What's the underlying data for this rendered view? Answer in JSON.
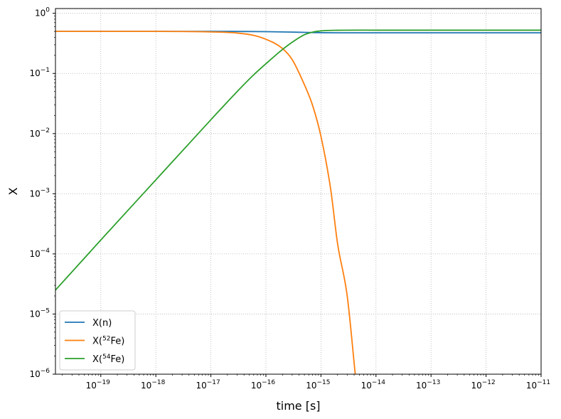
{
  "chart_data": {
    "type": "line",
    "title": "",
    "xlabel": "time [s]",
    "ylabel": "X",
    "xscale": "log",
    "yscale": "log",
    "xlim": [
      1.5e-20,
      1e-11
    ],
    "ylim": [
      1e-06,
      1.2
    ],
    "grid": true,
    "legend_position": "lower-left",
    "x_ticks": [
      {
        "value": 1e-19,
        "base": "10",
        "exp": "−19"
      },
      {
        "value": 1e-18,
        "base": "10",
        "exp": "−18"
      },
      {
        "value": 1e-17,
        "base": "10",
        "exp": "−17"
      },
      {
        "value": 1e-16,
        "base": "10",
        "exp": "−16"
      },
      {
        "value": 1e-15,
        "base": "10",
        "exp": "−15"
      },
      {
        "value": 1e-14,
        "base": "10",
        "exp": "−14"
      },
      {
        "value": 1e-13,
        "base": "10",
        "exp": "−13"
      },
      {
        "value": 1e-12,
        "base": "10",
        "exp": "−12"
      },
      {
        "value": 1e-11,
        "base": "10",
        "exp": "−11"
      }
    ],
    "y_ticks": [
      {
        "value": 1e-06,
        "base": "10",
        "exp": "−6"
      },
      {
        "value": 1e-05,
        "base": "10",
        "exp": "−5"
      },
      {
        "value": 0.0001,
        "base": "10",
        "exp": "−4"
      },
      {
        "value": 0.001,
        "base": "10",
        "exp": "−3"
      },
      {
        "value": 0.01,
        "base": "10",
        "exp": "−2"
      },
      {
        "value": 0.1,
        "base": "10",
        "exp": "−1"
      },
      {
        "value": 1,
        "base": "10",
        "exp": "0"
      }
    ],
    "series": [
      {
        "name": "X(n)",
        "legend": {
          "prefix": "X(n)",
          "sup": "",
          "suffix": ""
        },
        "color": "#1f77b4",
        "x": [
          1.5e-20,
          1e-19,
          1e-18,
          1e-17,
          5e-17,
          1e-16,
          3e-16,
          6e-16,
          1e-15,
          2e-15,
          1e-14,
          1e-13,
          1e-12,
          1e-11
        ],
        "y": [
          0.5,
          0.5,
          0.5,
          0.5,
          0.498,
          0.495,
          0.487,
          0.48,
          0.476,
          0.474,
          0.474,
          0.474,
          0.474,
          0.474
        ]
      },
      {
        "name": "X(52Fe)",
        "legend": {
          "prefix": "X(",
          "sup": "52",
          "suffix": "Fe)"
        },
        "color": "#ff7f0e",
        "x": [
          1.5e-20,
          1e-19,
          1e-18,
          1e-17,
          3e-17,
          6e-17,
          1e-16,
          2e-16,
          3e-16,
          5e-16,
          7e-16,
          1e-15,
          1.5e-15,
          2e-15,
          3e-15,
          4.2e-15
        ],
        "y": [
          0.5,
          0.5,
          0.5,
          0.49,
          0.47,
          0.43,
          0.37,
          0.26,
          0.17,
          0.065,
          0.03,
          0.009,
          0.0012,
          0.00015,
          2e-05,
          1e-06
        ]
      },
      {
        "name": "X(54Fe)",
        "legend": {
          "prefix": "X(",
          "sup": "54",
          "suffix": "Fe)"
        },
        "color": "#2ca02c",
        "x": [
          1.5e-20,
          1e-19,
          1e-18,
          1e-17,
          3e-17,
          6e-17,
          1e-16,
          2e-16,
          3e-16,
          5e-16,
          7e-16,
          1e-15,
          2e-15,
          1e-14,
          1e-13,
          1e-12,
          1e-11
        ],
        "y": [
          2.5e-05,
          0.00017,
          0.0017,
          0.017,
          0.05,
          0.095,
          0.145,
          0.25,
          0.33,
          0.44,
          0.485,
          0.51,
          0.522,
          0.524,
          0.524,
          0.524,
          0.524
        ]
      }
    ]
  }
}
